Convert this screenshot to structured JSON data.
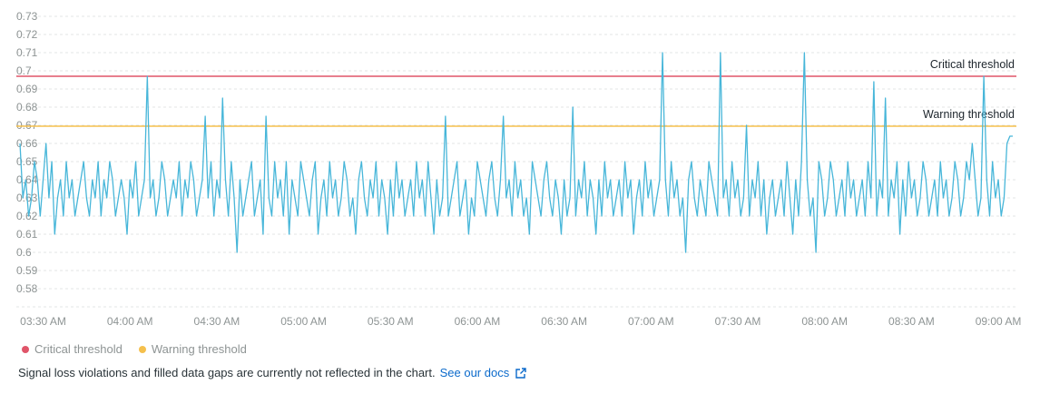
{
  "chart_data": {
    "type": "line",
    "ylim": [
      0.575,
      0.73
    ],
    "y_ticks": [
      "0.73",
      "0.72",
      "0.71",
      "0.7",
      "0.69",
      "0.68",
      "0.67",
      "0.66",
      "0.65",
      "0.64",
      "0.63",
      "0.62",
      "0.61",
      "0.6",
      "0.59",
      "0.58"
    ],
    "y_tick_values": [
      0.73,
      0.72,
      0.71,
      0.7,
      0.69,
      0.68,
      0.67,
      0.66,
      0.65,
      0.64,
      0.63,
      0.62,
      0.61,
      0.6,
      0.59,
      0.58
    ],
    "x_ticks": [
      "03:30 AM",
      "04:00 AM",
      "04:30 AM",
      "05:00 AM",
      "05:30 AM",
      "06:00 AM",
      "06:30 AM",
      "07:00 AM",
      "07:30 AM",
      "08:00 AM",
      "08:30 AM",
      "09:00 AM"
    ],
    "x_start": "03:22 AM",
    "x_end": "09:04 AM",
    "x_step_minutes": 1,
    "x_tick_minutes": [
      210,
      240,
      270,
      300,
      330,
      360,
      390,
      420,
      450,
      480,
      510,
      540
    ],
    "series": [
      {
        "color": "#47b6d9",
        "values": [
          0.66,
          0.63,
          0.64,
          0.62,
          0.63,
          0.65,
          0.64,
          0.62,
          0.64,
          0.66,
          0.63,
          0.65,
          0.61,
          0.63,
          0.64,
          0.62,
          0.65,
          0.63,
          0.64,
          0.62,
          0.63,
          0.64,
          0.65,
          0.63,
          0.62,
          0.64,
          0.63,
          0.65,
          0.62,
          0.64,
          0.63,
          0.65,
          0.64,
          0.62,
          0.63,
          0.64,
          0.63,
          0.61,
          0.64,
          0.63,
          0.65,
          0.62,
          0.63,
          0.64,
          0.697,
          0.63,
          0.64,
          0.62,
          0.63,
          0.65,
          0.64,
          0.62,
          0.63,
          0.64,
          0.63,
          0.65,
          0.62,
          0.64,
          0.63,
          0.65,
          0.64,
          0.62,
          0.63,
          0.64,
          0.675,
          0.63,
          0.65,
          0.62,
          0.64,
          0.63,
          0.685,
          0.64,
          0.62,
          0.65,
          0.63,
          0.6,
          0.64,
          0.62,
          0.63,
          0.64,
          0.65,
          0.62,
          0.63,
          0.64,
          0.61,
          0.675,
          0.63,
          0.62,
          0.65,
          0.63,
          0.64,
          0.62,
          0.65,
          0.61,
          0.64,
          0.63,
          0.62,
          0.65,
          0.64,
          0.63,
          0.62,
          0.64,
          0.65,
          0.61,
          0.63,
          0.64,
          0.62,
          0.65,
          0.63,
          0.64,
          0.62,
          0.63,
          0.65,
          0.64,
          0.62,
          0.63,
          0.61,
          0.64,
          0.65,
          0.63,
          0.62,
          0.64,
          0.63,
          0.65,
          0.62,
          0.64,
          0.63,
          0.61,
          0.64,
          0.62,
          0.65,
          0.63,
          0.64,
          0.62,
          0.63,
          0.64,
          0.62,
          0.65,
          0.63,
          0.64,
          0.62,
          0.65,
          0.63,
          0.61,
          0.64,
          0.62,
          0.63,
          0.675,
          0.62,
          0.63,
          0.64,
          0.65,
          0.62,
          0.63,
          0.64,
          0.61,
          0.63,
          0.62,
          0.65,
          0.64,
          0.63,
          0.62,
          0.64,
          0.65,
          0.63,
          0.62,
          0.64,
          0.675,
          0.63,
          0.64,
          0.62,
          0.65,
          0.63,
          0.64,
          0.62,
          0.63,
          0.61,
          0.65,
          0.64,
          0.63,
          0.62,
          0.64,
          0.65,
          0.63,
          0.62,
          0.64,
          0.63,
          0.61,
          0.64,
          0.62,
          0.63,
          0.68,
          0.62,
          0.64,
          0.63,
          0.65,
          0.62,
          0.64,
          0.63,
          0.61,
          0.64,
          0.62,
          0.65,
          0.63,
          0.64,
          0.62,
          0.63,
          0.64,
          0.62,
          0.65,
          0.63,
          0.64,
          0.61,
          0.63,
          0.64,
          0.62,
          0.65,
          0.63,
          0.64,
          0.62,
          0.63,
          0.64,
          0.71,
          0.64,
          0.62,
          0.65,
          0.63,
          0.64,
          0.62,
          0.63,
          0.6,
          0.64,
          0.65,
          0.63,
          0.62,
          0.64,
          0.63,
          0.62,
          0.65,
          0.64,
          0.63,
          0.62,
          0.71,
          0.63,
          0.64,
          0.62,
          0.65,
          0.63,
          0.64,
          0.62,
          0.63,
          0.67,
          0.62,
          0.64,
          0.63,
          0.65,
          0.62,
          0.64,
          0.61,
          0.63,
          0.64,
          0.62,
          0.63,
          0.64,
          0.62,
          0.65,
          0.63,
          0.61,
          0.64,
          0.62,
          0.65,
          0.71,
          0.64,
          0.62,
          0.63,
          0.6,
          0.65,
          0.64,
          0.62,
          0.63,
          0.65,
          0.64,
          0.62,
          0.63,
          0.64,
          0.62,
          0.65,
          0.63,
          0.64,
          0.62,
          0.63,
          0.64,
          0.62,
          0.65,
          0.63,
          0.694,
          0.62,
          0.64,
          0.63,
          0.685,
          0.62,
          0.64,
          0.63,
          0.65,
          0.61,
          0.64,
          0.62,
          0.65,
          0.63,
          0.64,
          0.62,
          0.63,
          0.65,
          0.64,
          0.62,
          0.63,
          0.64,
          0.62,
          0.65,
          0.63,
          0.64,
          0.62,
          0.63,
          0.65,
          0.64,
          0.62,
          0.63,
          0.65,
          0.64,
          0.66,
          0.64,
          0.62,
          0.63,
          0.697,
          0.64,
          0.62,
          0.65,
          0.63,
          0.64,
          0.62,
          0.63,
          0.66,
          0.664,
          0.664
        ]
      }
    ],
    "thresholds": [
      {
        "name": "Critical threshold",
        "value": 0.697,
        "color": "#e05569"
      },
      {
        "name": "Warning threshold",
        "value": 0.6695,
        "color": "#f5c04d"
      }
    ]
  },
  "legend": {
    "items": [
      {
        "label": "Critical threshold",
        "color": "#e05569"
      },
      {
        "label": "Warning threshold",
        "color": "#f5c04d"
      }
    ]
  },
  "footer": {
    "note": "Signal loss violations and filled data gaps are currently not reflected in the chart.",
    "link_label": "See our docs",
    "link_icon": "external-link-icon"
  }
}
